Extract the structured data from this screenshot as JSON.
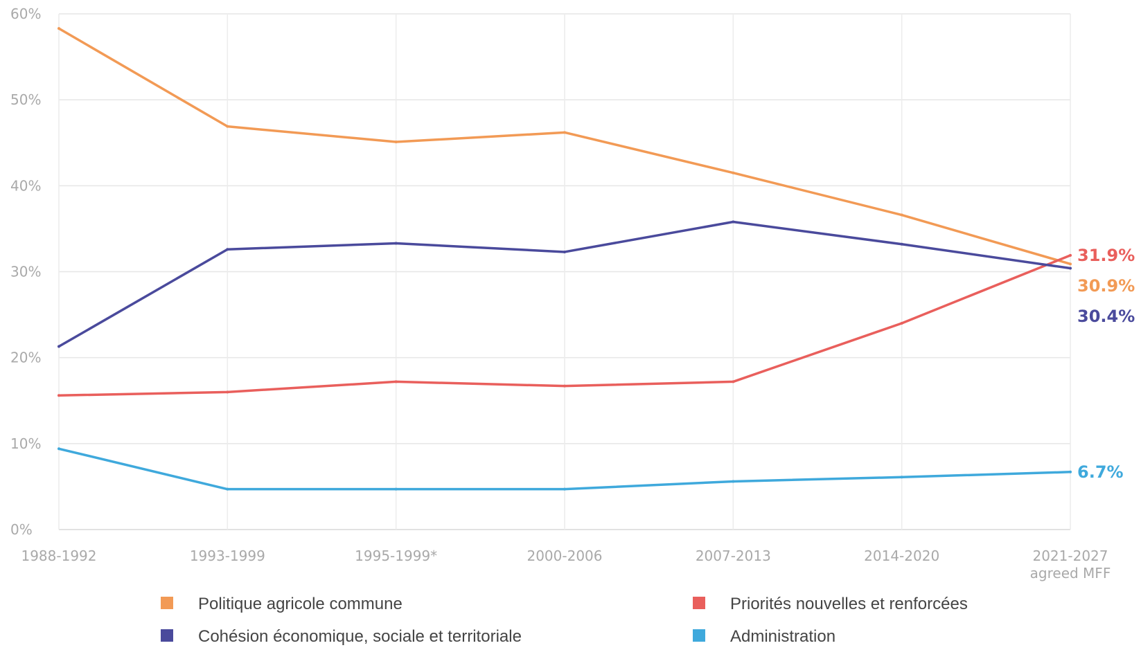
{
  "chart_data": {
    "type": "line",
    "title": "",
    "xlabel": "",
    "ylabel": "",
    "categories": [
      "1988-1992",
      "1993-1999",
      "1995-1999*",
      "2000-2006",
      "2007-2013",
      "2014-2020",
      "2021-2027"
    ],
    "category_sublabels": [
      "",
      "",
      "",
      "",
      "",
      "",
      "agreed MFF"
    ],
    "ylim": [
      0,
      60
    ],
    "yticks": [
      0,
      10,
      20,
      30,
      40,
      50,
      60
    ],
    "ytick_labels": [
      "0%",
      "10%",
      "20%",
      "30%",
      "40%",
      "50%",
      "60%"
    ],
    "grid": true,
    "legend_position": "bottom",
    "series": [
      {
        "name": "Politique agricole commune",
        "color": "#f29a55",
        "values": [
          58.3,
          46.9,
          45.1,
          46.2,
          41.5,
          36.6,
          30.9
        ],
        "end_label": "30.9%"
      },
      {
        "name": "Priorités nouvelles et renforcées",
        "color": "#e95f5c",
        "values": [
          15.6,
          16.0,
          17.2,
          16.7,
          17.2,
          24.0,
          31.9
        ],
        "end_label": "31.9%"
      },
      {
        "name": "Cohésion économique, sociale et territoriale",
        "color": "#4a4a9c",
        "values": [
          21.3,
          32.6,
          33.3,
          32.3,
          35.8,
          33.2,
          30.4
        ],
        "end_label": "30.4%"
      },
      {
        "name": "Administration",
        "color": "#3fa9dc",
        "values": [
          9.4,
          4.7,
          4.7,
          4.7,
          5.6,
          6.1,
          6.7
        ],
        "end_label": "6.7%"
      }
    ]
  }
}
